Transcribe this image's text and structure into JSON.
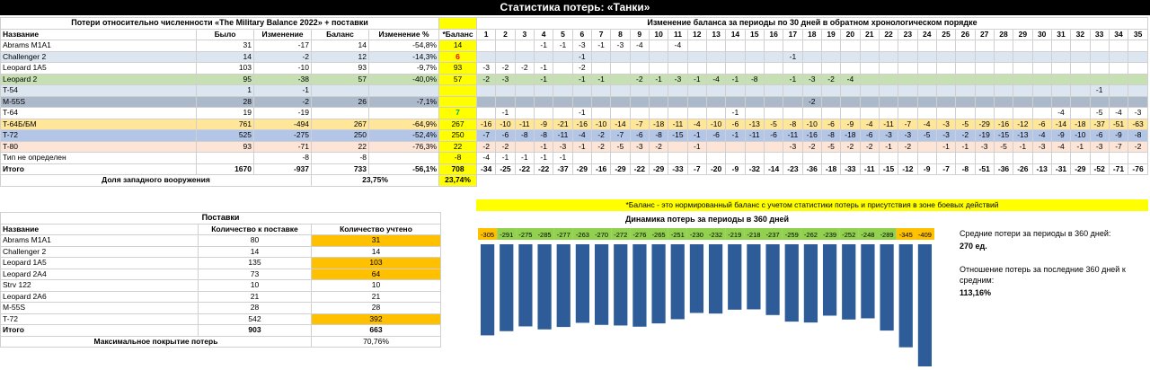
{
  "page_title": "Статистика потерь: «Танки»",
  "losses": {
    "heading": "Потери относительно численности «The Military Balance 2022» + поставки",
    "columns": [
      "Название",
      "Было",
      "Изменение",
      "Баланс",
      "Изменение %",
      "*Баланс"
    ],
    "rows": [
      {
        "name": "Abrams M1A1",
        "was": "31",
        "change": "-17",
        "balance": "14",
        "pct": "-54,8%",
        "nb": "14",
        "bg": "#ffffff",
        "nbc": ""
      },
      {
        "name": "Challenger 2",
        "was": "14",
        "change": "-2",
        "balance": "12",
        "pct": "-14,3%",
        "nb": "6",
        "bg": "#dce6f1",
        "nbc": "red"
      },
      {
        "name": "Leopard 1A5",
        "was": "103",
        "change": "-10",
        "balance": "93",
        "pct": "-9,7%",
        "nb": "93",
        "bg": "#ffffff",
        "nbc": ""
      },
      {
        "name": "Leopard 2",
        "was": "95",
        "change": "-38",
        "balance": "57",
        "pct": "-40,0%",
        "nb": "57",
        "bg": "#c6e0b4",
        "nbc": ""
      },
      {
        "name": "T-54",
        "was": "1",
        "change": "-1",
        "balance": "",
        "pct": "",
        "nb": "",
        "bg": "#dce6f1",
        "nbc": ""
      },
      {
        "name": "M-55S",
        "was": "28",
        "change": "-2",
        "balance": "26",
        "pct": "-7,1%",
        "nb": "",
        "bg": "#acb9ca",
        "nbc": ""
      },
      {
        "name": "T-64",
        "was": "19",
        "change": "-19",
        "balance": "",
        "pct": "",
        "nb": "7",
        "bg": "#ffffff",
        "nbc": "grn"
      },
      {
        "name": "T-64Б/БМ",
        "was": "761",
        "change": "-494",
        "balance": "267",
        "pct": "-64,9%",
        "nb": "267",
        "bg": "#ffe699",
        "nbc": ""
      },
      {
        "name": "T-72",
        "was": "525",
        "change": "-275",
        "balance": "250",
        "pct": "-52,4%",
        "nb": "250",
        "bg": "#b4c6e7",
        "nbc": ""
      },
      {
        "name": "T-80",
        "was": "93",
        "change": "-71",
        "balance": "22",
        "pct": "-76,3%",
        "nb": "22",
        "bg": "#fce4d6",
        "nbc": ""
      },
      {
        "name": "Тип не определен",
        "was": "",
        "change": "-8",
        "balance": "-8",
        "pct": "",
        "nb": "-8",
        "bg": "#ffffff",
        "nbc": ""
      }
    ],
    "total": {
      "name": "Итого",
      "was": "1670",
      "change": "-937",
      "balance": "733",
      "pct": "-56,1%",
      "nb": "708"
    },
    "western": {
      "label": "Доля западного вооружения",
      "value": "23,75%",
      "nb": "23,74%"
    }
  },
  "periods": {
    "heading": "Изменение баланса за периоды по 30 дней в обратном хронологическом порядке",
    "numbers": [
      "1",
      "2",
      "3",
      "4",
      "5",
      "6",
      "7",
      "8",
      "9",
      "10",
      "11",
      "12",
      "13",
      "14",
      "15",
      "16",
      "17",
      "18",
      "19",
      "20",
      "21",
      "22",
      "23",
      "24",
      "25",
      "26",
      "27",
      "28",
      "29",
      "30",
      "31",
      "32",
      "33",
      "34",
      "35"
    ],
    "rows": [
      [
        "",
        "",
        "",
        "-1",
        "-1",
        "-3",
        "-1",
        "-3",
        "-4",
        "",
        "-4",
        "",
        "",
        "",
        "",
        "",
        "",
        "",
        "",
        "",
        "",
        "",
        "",
        "",
        "",
        "",
        "",
        "",
        "",
        "",
        "",
        "",
        "",
        "",
        ""
      ],
      [
        "",
        "",
        "",
        "",
        "",
        "-1",
        "",
        "",
        "",
        "",
        "",
        "",
        "",
        "",
        "",
        "",
        "-1",
        "",
        "",
        "",
        "",
        "",
        "",
        "",
        "",
        "",
        "",
        "",
        "",
        "",
        "",
        "",
        "",
        "",
        ""
      ],
      [
        "-3",
        "-2",
        "-2",
        "-1",
        "",
        "-2",
        "",
        "",
        "",
        "",
        "",
        "",
        "",
        "",
        "",
        "",
        "",
        "",
        "",
        "",
        "",
        "",
        "",
        "",
        "",
        "",
        "",
        "",
        "",
        "",
        "",
        "",
        "",
        "",
        ""
      ],
      [
        "-2",
        "-3",
        "",
        "-1",
        "",
        "-1",
        "-1",
        "",
        "-2",
        "-1",
        "-3",
        "-1",
        "-4",
        "-1",
        "-8",
        "",
        "-1",
        "-3",
        "-2",
        "-4",
        "",
        "",
        "",
        "",
        "",
        "",
        "",
        "",
        "",
        "",
        "",
        "",
        "",
        "",
        ""
      ],
      [
        "",
        "",
        "",
        "",
        "",
        "",
        "",
        "",
        "",
        "",
        "",
        "",
        "",
        "",
        "",
        "",
        "",
        "",
        "",
        "",
        "",
        "",
        "",
        "",
        "",
        "",
        "",
        "",
        "",
        "",
        "",
        "",
        "-1",
        "",
        ""
      ],
      [
        "",
        "",
        "",
        "",
        "",
        "",
        "",
        "",
        "",
        "",
        "",
        "",
        "",
        "",
        "",
        "",
        "",
        "-2",
        "",
        "",
        "",
        "",
        "",
        "",
        "",
        "",
        "",
        "",
        "",
        "",
        "",
        "",
        "",
        "",
        ""
      ],
      [
        "",
        "-1",
        "",
        "",
        "",
        "-1",
        "",
        "",
        "",
        "",
        "",
        "",
        "",
        "-1",
        "",
        "",
        "",
        "",
        "",
        "",
        "",
        "",
        "",
        "",
        "",
        "",
        "",
        "",
        "",
        "",
        "-4",
        "",
        "-5",
        "-4",
        "-3"
      ],
      [
        "-16",
        "-10",
        "-11",
        "-9",
        "-21",
        "-16",
        "-10",
        "-14",
        "-7",
        "-18",
        "-11",
        "-4",
        "-10",
        "-6",
        "-13",
        "-5",
        "-8",
        "-10",
        "-6",
        "-9",
        "-4",
        "-11",
        "-7",
        "-4",
        "-3",
        "-5",
        "-29",
        "-16",
        "-12",
        "-6",
        "-14",
        "-18",
        "-37",
        "-51",
        "-63"
      ],
      [
        "-7",
        "-6",
        "-8",
        "-8",
        "-11",
        "-4",
        "-2",
        "-7",
        "-6",
        "-8",
        "-15",
        "-1",
        "-6",
        "-1",
        "-11",
        "-6",
        "-11",
        "-16",
        "-8",
        "-18",
        "-6",
        "-3",
        "-3",
        "-5",
        "-3",
        "-2",
        "-19",
        "-15",
        "-13",
        "-4",
        "-9",
        "-10",
        "-6",
        "-9",
        "-8"
      ],
      [
        "-2",
        "-2",
        "",
        "-1",
        "-3",
        "-1",
        "-2",
        "-5",
        "-3",
        "-2",
        "",
        "-1",
        "",
        "",
        "",
        "",
        "-3",
        "-2",
        "-5",
        "-2",
        "-2",
        "-1",
        "-2",
        "",
        "-1",
        "-1",
        "-3",
        "-5",
        "-1",
        "-3",
        "-4",
        "-1",
        "-3",
        "-7",
        "-2"
      ],
      [
        "-4",
        "-1",
        "-1",
        "-1",
        "-1",
        "",
        "",
        "",
        "",
        "",
        "",
        "",
        "",
        "",
        "",
        "",
        "",
        "",
        "",
        "",
        "",
        "",
        "",
        "",
        "",
        "",
        "",
        "",
        "",
        "",
        "",
        "",
        "",
        "",
        ""
      ]
    ],
    "totals": [
      "-34",
      "-25",
      "-22",
      "-22",
      "-37",
      "-29",
      "-16",
      "-29",
      "-22",
      "-29",
      "-33",
      "-7",
      "-20",
      "-9",
      "-32",
      "-14",
      "-23",
      "-36",
      "-18",
      "-33",
      "-11",
      "-15",
      "-12",
      "-9",
      "-7",
      "-8",
      "-51",
      "-36",
      "-26",
      "-13",
      "-31",
      "-29",
      "-52",
      "-71",
      "-76"
    ],
    "note": "*Баланс - это нормированный баланс с учетом статистики потерь и присутствия в зоне боевых действий"
  },
  "deliveries": {
    "heading": "Поставки",
    "columns": [
      "Название",
      "Количество к поставке",
      "Количество учтено"
    ],
    "rows": [
      {
        "name": "Abrams M1A1",
        "qty": "80",
        "counted": "31",
        "hl": true
      },
      {
        "name": "Challenger 2",
        "qty": "14",
        "counted": "14",
        "hl": false
      },
      {
        "name": "Leopard 1A5",
        "qty": "135",
        "counted": "103",
        "hl": true
      },
      {
        "name": "Leopard 2A4",
        "qty": "73",
        "counted": "64",
        "hl": true
      },
      {
        "name": "Strv 122",
        "qty": "10",
        "counted": "10",
        "hl": false
      },
      {
        "name": "Leopard 2A6",
        "qty": "21",
        "counted": "21",
        "hl": false
      },
      {
        "name": "M-55S",
        "qty": "28",
        "counted": "28",
        "hl": false
      },
      {
        "name": "T-72",
        "qty": "542",
        "counted": "392",
        "hl": true
      }
    ],
    "total": {
      "name": "Итого",
      "qty": "903",
      "counted": "663"
    },
    "coverage": {
      "label": "Максимальное покрытие потерь",
      "value": "70,76%"
    }
  },
  "chart_data": {
    "type": "bar",
    "title": "Динамика потерь за периоды в 360 дней",
    "values": [
      -305,
      -291,
      -275,
      -285,
      -277,
      -263,
      -270,
      -272,
      -276,
      -265,
      -251,
      -230,
      -232,
      -219,
      -218,
      -237,
      -259,
      -262,
      -239,
      -252,
      -248,
      -289,
      -345,
      -409
    ],
    "labels": [
      "-305",
      "-291",
      "-275",
      "-285",
      "-277",
      "-263",
      "-270",
      "-272",
      "-276",
      "-265",
      "-251",
      "-230",
      "-232",
      "-219",
      "-218",
      "-237",
      "-259",
      "-262",
      "-239",
      "-252",
      "-248",
      "-289",
      "-345",
      "-409"
    ],
    "label_colors": [
      "#ffc000",
      "#92d050",
      "#92d050",
      "#92d050",
      "#92d050",
      "#92d050",
      "#92d050",
      "#92d050",
      "#92d050",
      "#92d050",
      "#92d050",
      "#92d050",
      "#92d050",
      "#92d050",
      "#92d050",
      "#92d050",
      "#92d050",
      "#92d050",
      "#92d050",
      "#92d050",
      "#92d050",
      "#92d050",
      "#ffc000",
      "#ffc000"
    ],
    "bar_color": "#2e5c99",
    "ylim": [
      -409,
      0
    ]
  },
  "stats": {
    "avg_label": "Средние потери за периоды в 360 дней:",
    "avg_value": "270 ед.",
    "ratio_label": "Отношение потерь за последние 360 дней к средним:",
    "ratio_value": "113,16%"
  }
}
